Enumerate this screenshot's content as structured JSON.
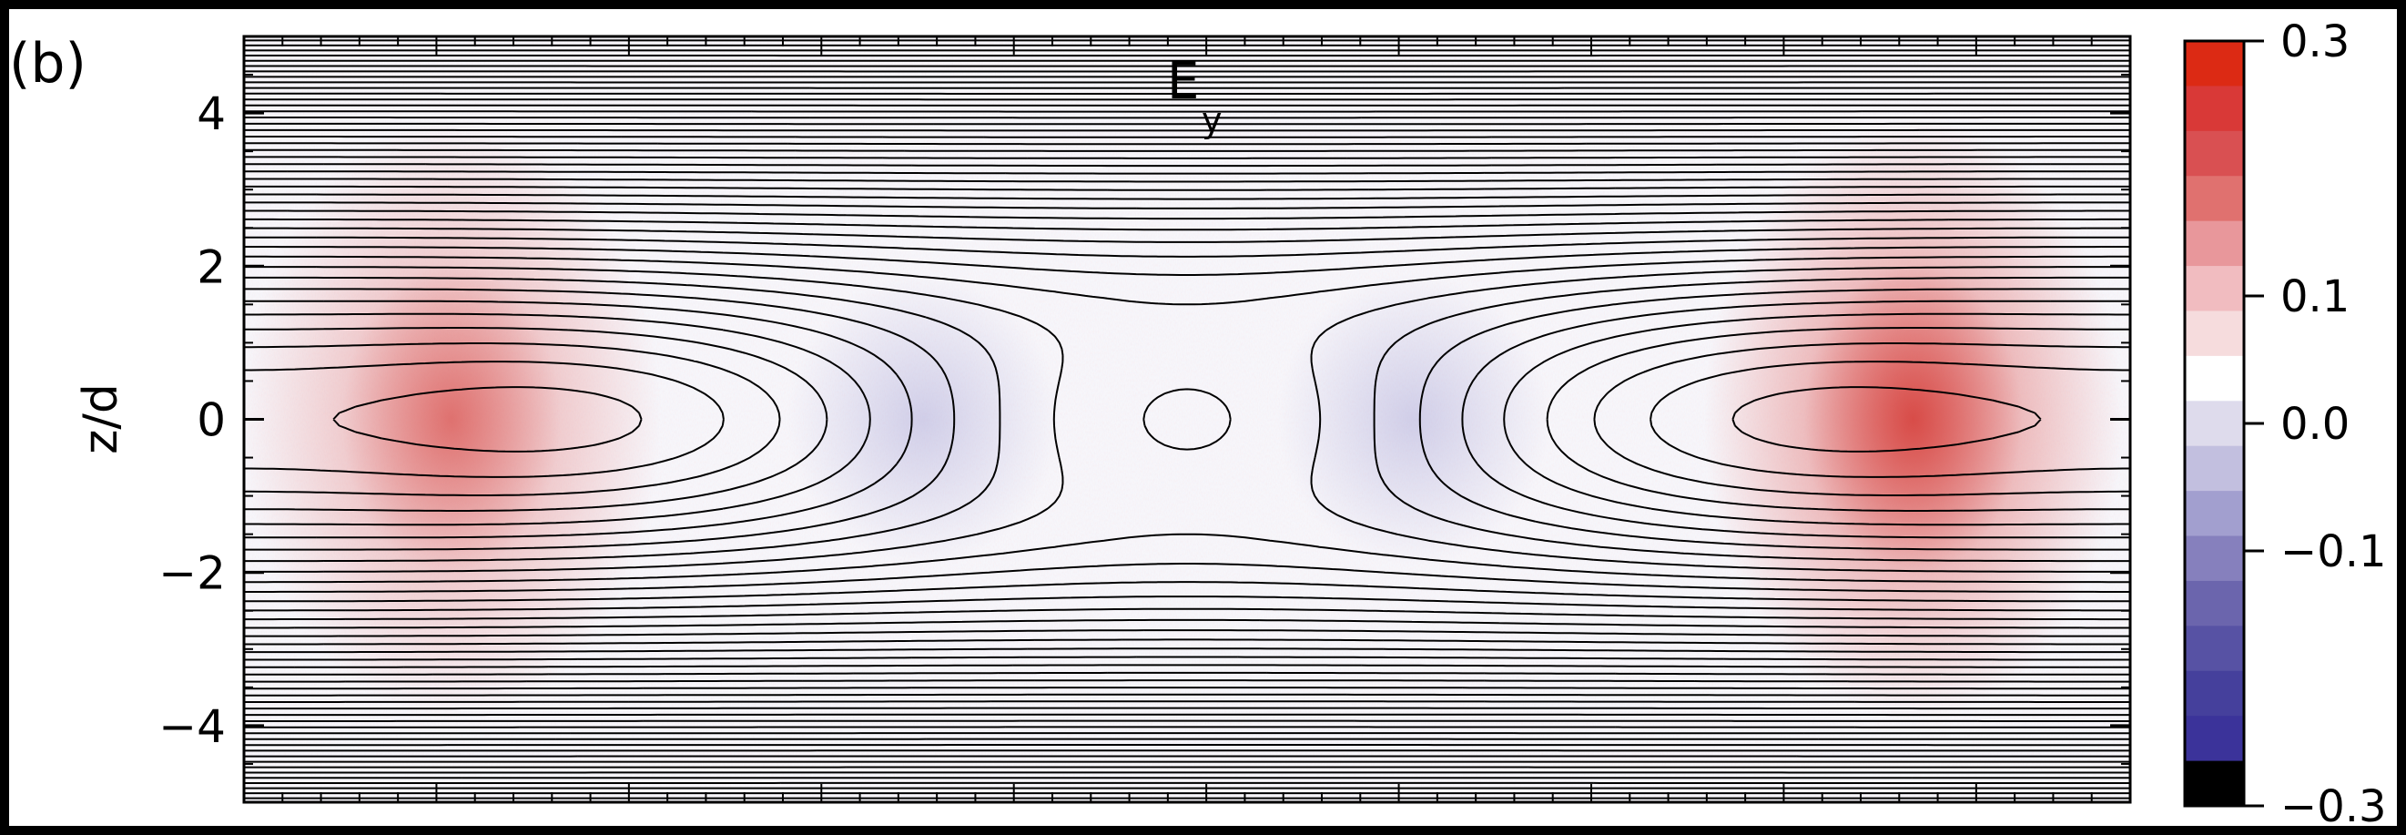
{
  "chart_data": {
    "type": "heatmap",
    "panel_label": "(b)",
    "title": "E",
    "title_subscript": "y",
    "xlabel": "",
    "ylabel": "z/d",
    "ylim": [
      -5,
      5
    ],
    "y_ticks": [
      {
        "value": 4,
        "label": "4"
      },
      {
        "value": 2,
        "label": "2"
      },
      {
        "value": 0,
        "label": "0"
      },
      {
        "value": -2,
        "label": "−2"
      },
      {
        "value": -4,
        "label": "−4"
      }
    ],
    "x_minor_tick_count": 49,
    "colorbar": {
      "range": [
        -0.3,
        0.3
      ],
      "ticks": [
        {
          "value": 0.3,
          "label": "0.3"
        },
        {
          "value": 0.1,
          "label": "0.1"
        },
        {
          "value": 0.0,
          "label": "0.0"
        },
        {
          "value": -0.1,
          "label": "−0.1"
        },
        {
          "value": -0.3,
          "label": "−0.3"
        }
      ],
      "levels": [
        "#dc2a14",
        "#d93937",
        "#d95052",
        "#e0716f",
        "#e8979b",
        "#f1bcc0",
        "#f6dcdd",
        "#ffffff",
        "#dedbec",
        "#c2bfdf",
        "#a29fcf",
        "#8680bd",
        "#6b65ad",
        "#5752a4",
        "#45409c",
        "#3b339a",
        "#000000"
      ]
    },
    "field_features": {
      "positive_lobes": [
        {
          "x": 0.11,
          "z": 0.0,
          "peak": 0.2
        },
        {
          "x": 0.885,
          "z": 0.0,
          "peak": 0.3
        }
      ],
      "negative_lobes": [
        {
          "x": 0.36,
          "z": 0.0,
          "peak": -0.06
        },
        {
          "x": 0.62,
          "z": 0.0,
          "peak": -0.06
        }
      ],
      "field_line_family": "magnetic islands / x-points with nested contours"
    }
  }
}
